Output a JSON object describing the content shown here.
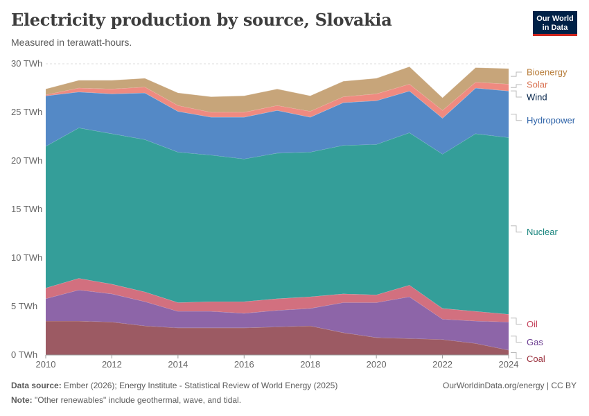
{
  "header": {
    "title": "Electricity production by source, Slovakia",
    "subtitle": "Measured in terawatt-hours.",
    "logo_line1": "Our World",
    "logo_line2": "in Data"
  },
  "footer": {
    "source_label": "Data source:",
    "source_text": "Ember (2026); Energy Institute - Statistical Review of World Energy (2025)",
    "note_label": "Note:",
    "note_text": "\"Other renewables\" include geothermal, wave, and tidal.",
    "url": "OurWorldinData.org/energy | CC BY"
  },
  "chart_data": {
    "type": "area",
    "stacked": true,
    "title": "Electricity production by source, Slovakia",
    "ylabel": "TWh",
    "ylim": [
      0,
      30
    ],
    "y_ticks": [
      0,
      5,
      10,
      15,
      20,
      25,
      30
    ],
    "y_tick_labels": [
      "0 TWh",
      "5 TWh",
      "10 TWh",
      "15 TWh",
      "20 TWh",
      "25 TWh",
      "30 TWh"
    ],
    "x": [
      2010,
      2011,
      2012,
      2013,
      2014,
      2015,
      2016,
      2017,
      2018,
      2019,
      2020,
      2021,
      2022,
      2023,
      2024
    ],
    "x_ticks": [
      2010,
      2012,
      2014,
      2016,
      2018,
      2020,
      2022,
      2024
    ],
    "x_tick_labels": [
      "2010",
      "2012",
      "2014",
      "2016",
      "2018",
      "2020",
      "2022",
      "2024"
    ],
    "series": [
      {
        "name": "Coal",
        "color": "#9c5a63",
        "label_color": "#9a2f3c",
        "values": [
          3.5,
          3.5,
          3.4,
          3.0,
          2.8,
          2.8,
          2.8,
          2.9,
          3.0,
          2.3,
          1.8,
          1.7,
          1.6,
          1.2,
          0.5
        ]
      },
      {
        "name": "Gas",
        "color": "#8d65a8",
        "label_color": "#6c3d91",
        "values": [
          2.3,
          3.2,
          2.9,
          2.5,
          1.7,
          1.7,
          1.5,
          1.7,
          1.8,
          3.1,
          3.6,
          4.3,
          2.1,
          2.3,
          2.9
        ]
      },
      {
        "name": "Oil",
        "color": "#d2707f",
        "label_color": "#c4405a",
        "values": [
          1.1,
          1.2,
          1.0,
          1.0,
          0.9,
          1.0,
          1.2,
          1.2,
          1.2,
          0.9,
          0.8,
          1.2,
          1.1,
          1.0,
          0.8
        ]
      },
      {
        "name": "Nuclear",
        "color": "#349e99",
        "label_color": "#18847d",
        "values": [
          14.6,
          15.5,
          15.5,
          15.7,
          15.5,
          15.1,
          14.7,
          15.0,
          14.9,
          15.3,
          15.5,
          15.7,
          15.9,
          18.3,
          18.2
        ]
      },
      {
        "name": "Hydropower",
        "color": "#5489c6",
        "label_color": "#2e63a8",
        "values": [
          5.2,
          3.7,
          4.1,
          4.8,
          4.2,
          3.9,
          4.3,
          4.4,
          3.6,
          4.4,
          4.5,
          4.3,
          3.7,
          4.7,
          4.8
        ]
      },
      {
        "name": "Wind",
        "color": "#1f4e8c",
        "label_color": "#002147",
        "values": [
          0.01,
          0.01,
          0.01,
          0.01,
          0.01,
          0.01,
          0.01,
          0.01,
          0.01,
          0.01,
          0.01,
          0.01,
          0.01,
          0.01,
          0.01
        ]
      },
      {
        "name": "Solar",
        "color": "#ef8a80",
        "label_color": "#d9704f",
        "values": [
          0.1,
          0.4,
          0.5,
          0.6,
          0.6,
          0.5,
          0.5,
          0.5,
          0.6,
          0.6,
          0.7,
          0.7,
          0.8,
          0.6,
          0.7
        ]
      },
      {
        "name": "Bioenergy",
        "color": "#c7a57a",
        "label_color": "#b87d3a",
        "values": [
          0.6,
          0.8,
          0.9,
          0.9,
          1.3,
          1.6,
          1.7,
          1.7,
          1.6,
          1.6,
          1.6,
          1.8,
          1.3,
          1.5,
          1.6
        ]
      }
    ]
  }
}
